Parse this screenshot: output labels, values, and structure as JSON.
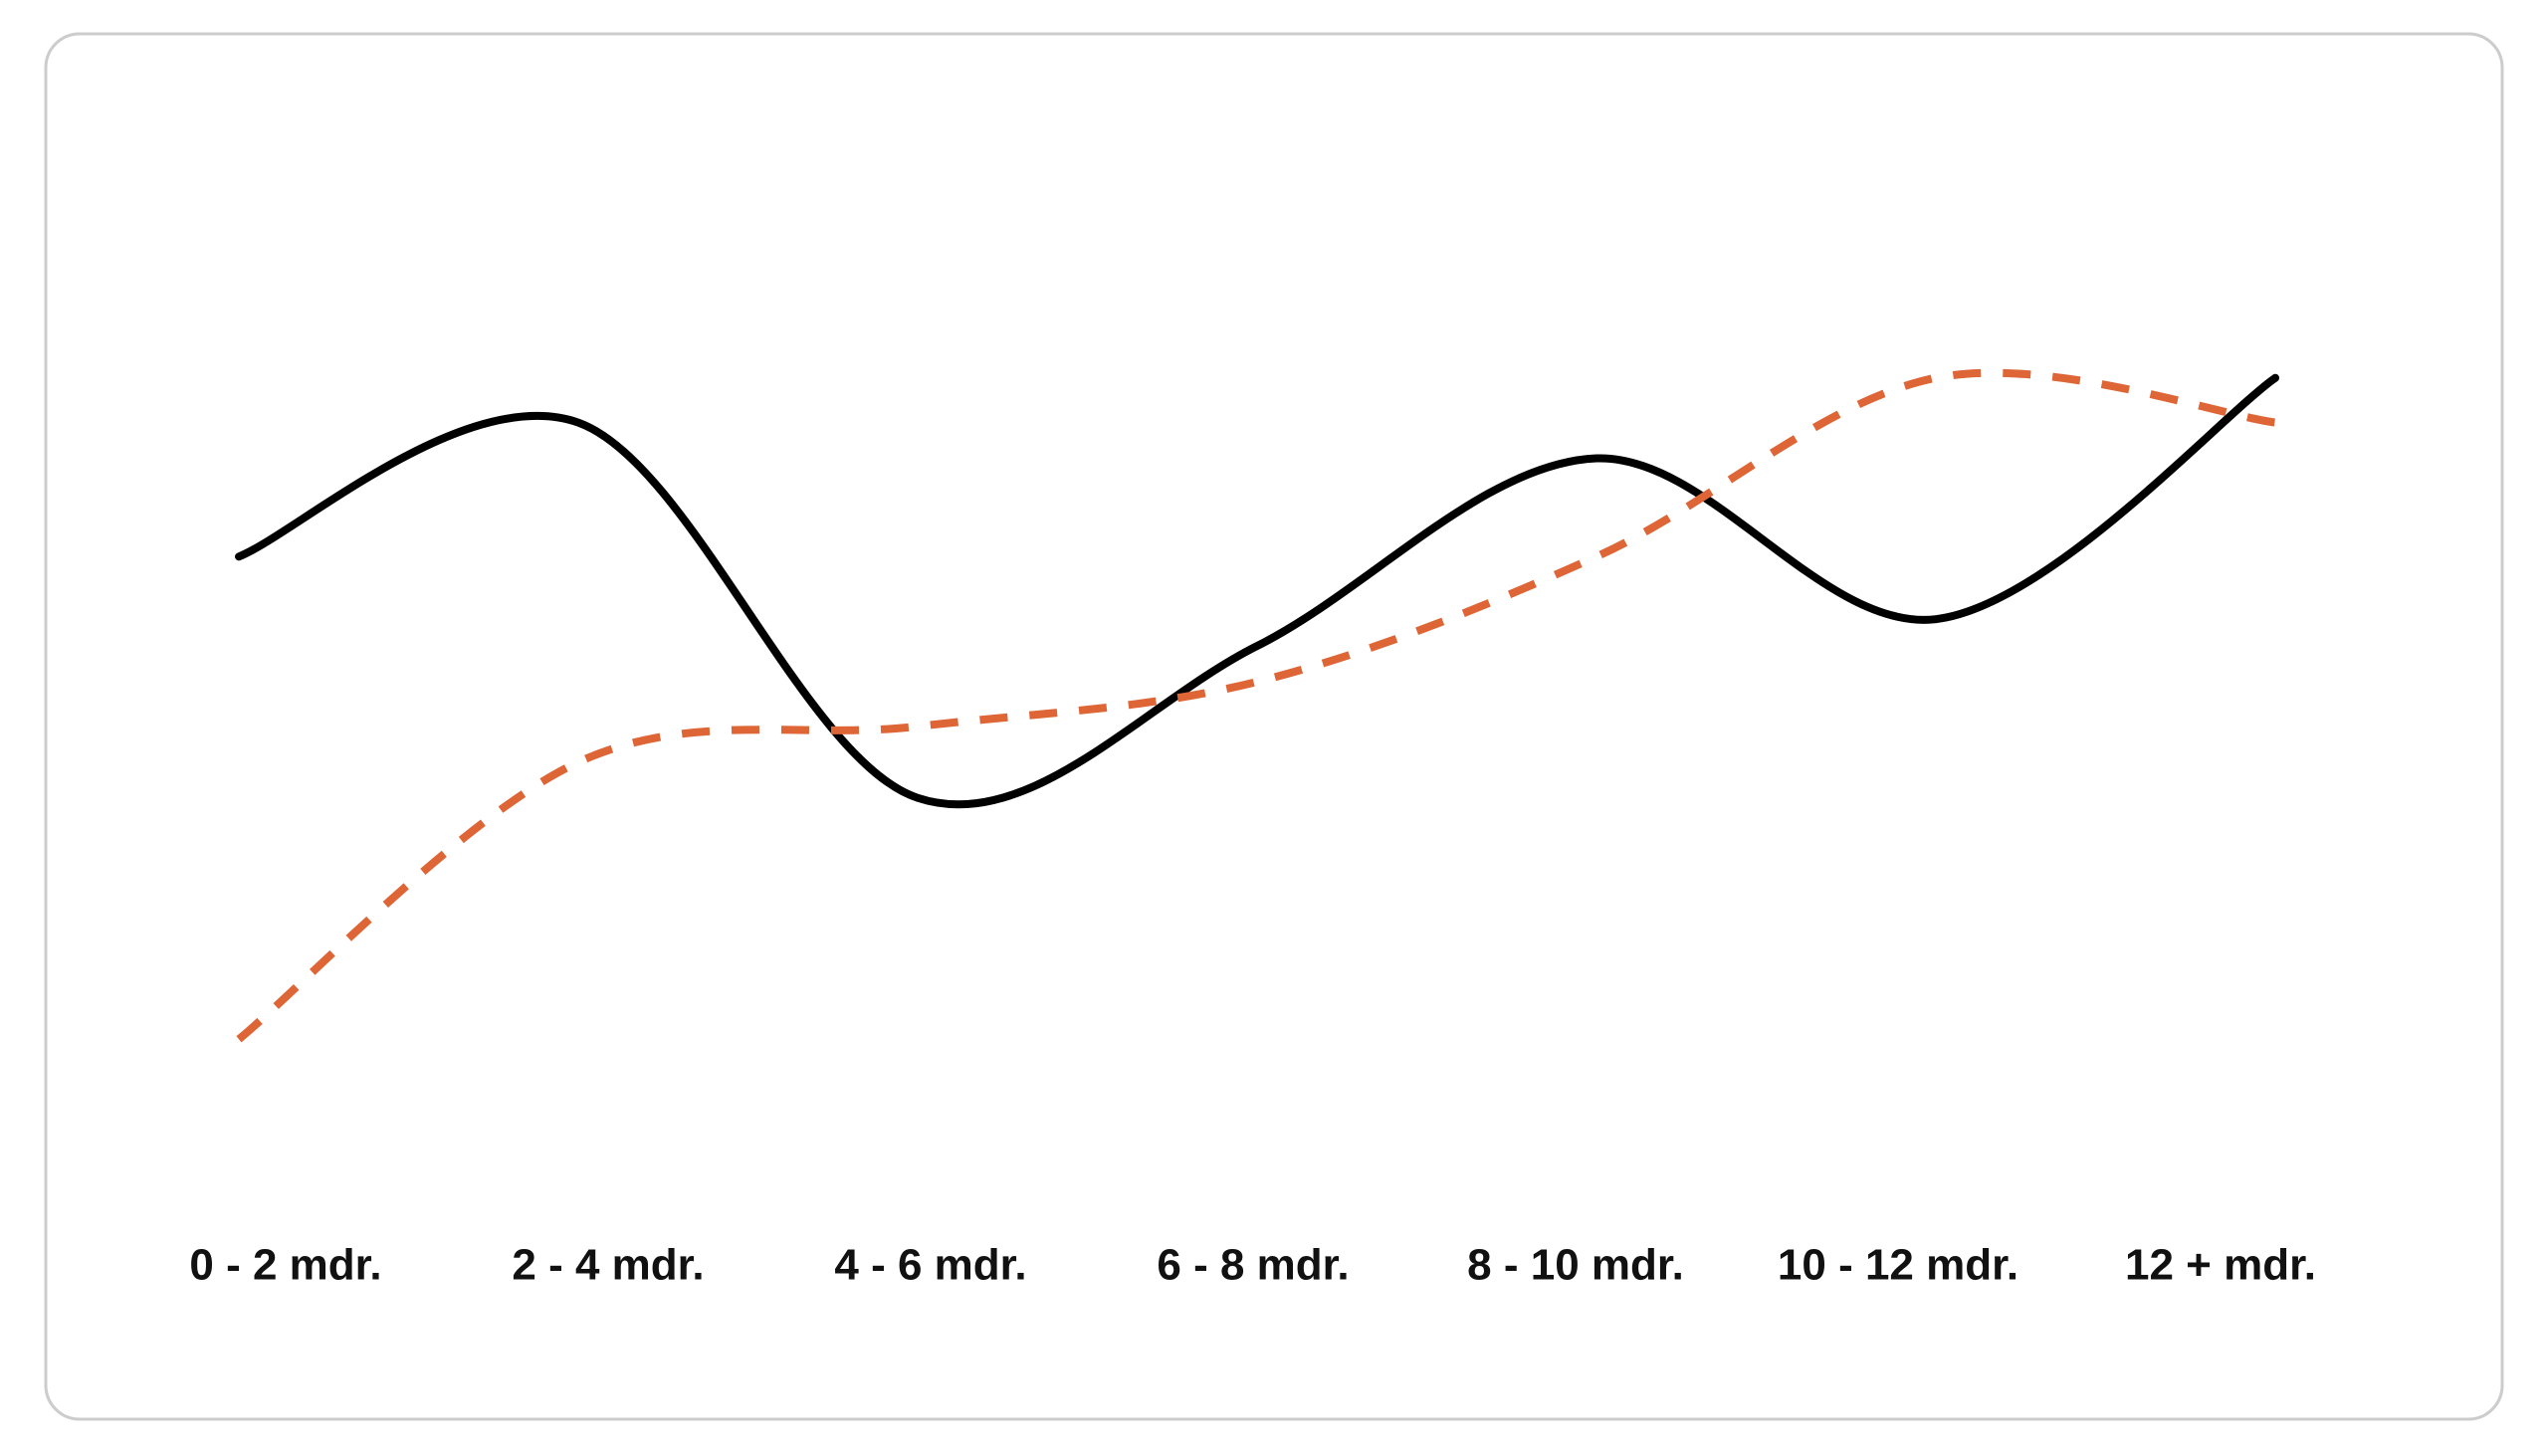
{
  "chart_data": {
    "type": "line",
    "categories": [
      "0 - 2 mdr.",
      "2 - 4 mdr.",
      "4 - 6 mdr.",
      "6 - 8 mdr.",
      "8 - 10 mdr.",
      "10 - 12 mdr.",
      "12 + mdr."
    ],
    "series": [
      {
        "color": "#000000",
        "dashed": false,
        "values": [
          65,
          80,
          38,
          55,
          76,
          58,
          85
        ]
      },
      {
        "color": "#dd6536",
        "dashed": true,
        "values": [
          11,
          42,
          46,
          51,
          65,
          85,
          80
        ]
      }
    ],
    "ylim": [
      0,
      100
    ],
    "smooth": true
  }
}
